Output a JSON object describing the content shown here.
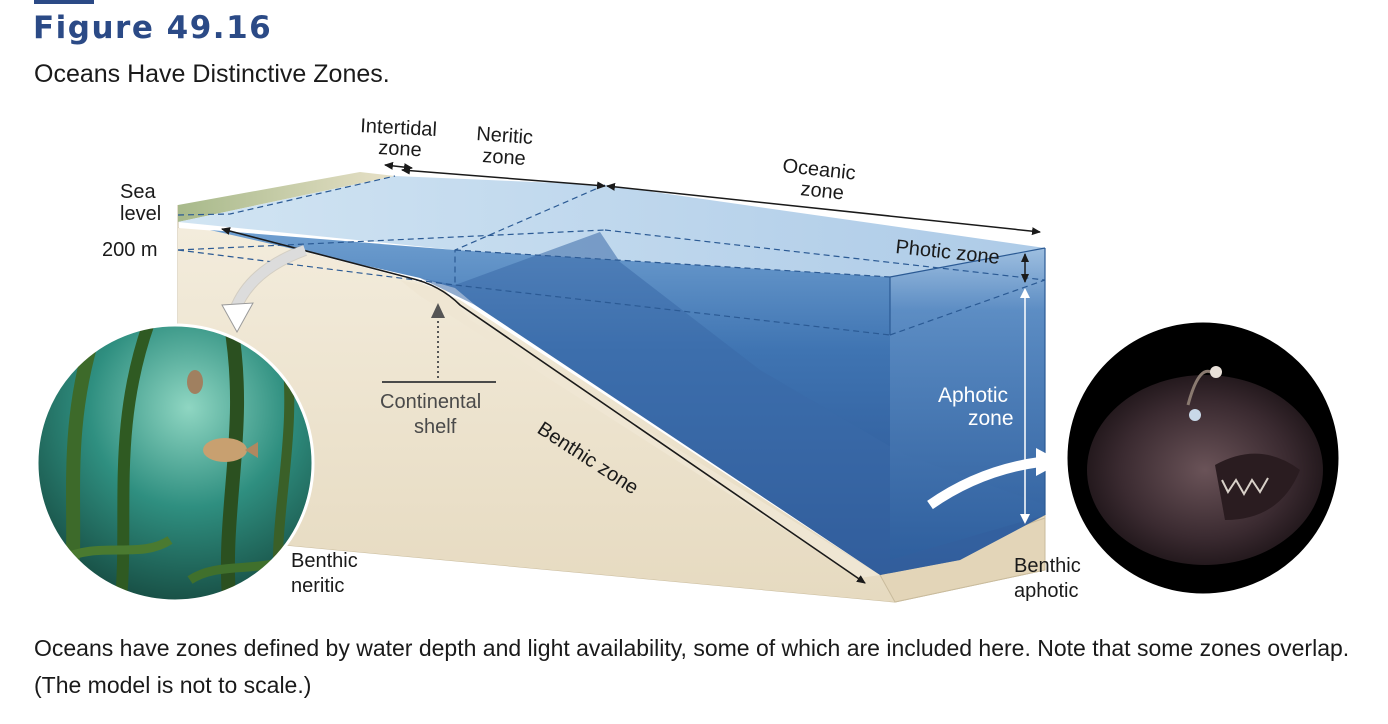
{
  "figure": {
    "label": "Figure 49.16",
    "title": "Oceans Have Distinctive Zones.",
    "caption": "Oceans have zones defined by water depth and light availability, some of which are included here. Note that some zones overlap. (The model is not to scale.)"
  },
  "labels": {
    "intertidal_1": "Intertidal",
    "intertidal_2": "zone",
    "neritic_1": "Neritic",
    "neritic_2": "zone",
    "oceanic_1": "Oceanic",
    "oceanic_2": "zone",
    "sea_level_1": "Sea",
    "sea_level_2": "level",
    "depth_200": "200 m",
    "photic": "Photic zone",
    "aphotic_1": "Aphotic",
    "aphotic_2": "zone",
    "shelf_1": "Continental",
    "shelf_2": "shelf",
    "benthic": "Benthic zone",
    "benthic_neritic_1": "Benthic",
    "benthic_neritic_2": "neritic",
    "benthic_aphotic_1": "Benthic",
    "benthic_aphotic_2": "aphotic"
  },
  "colors": {
    "heading": "#2b4a86",
    "water_deep": "#2e5f9e",
    "water_light": "#b7d3ec",
    "sand": "#efe6d3"
  }
}
